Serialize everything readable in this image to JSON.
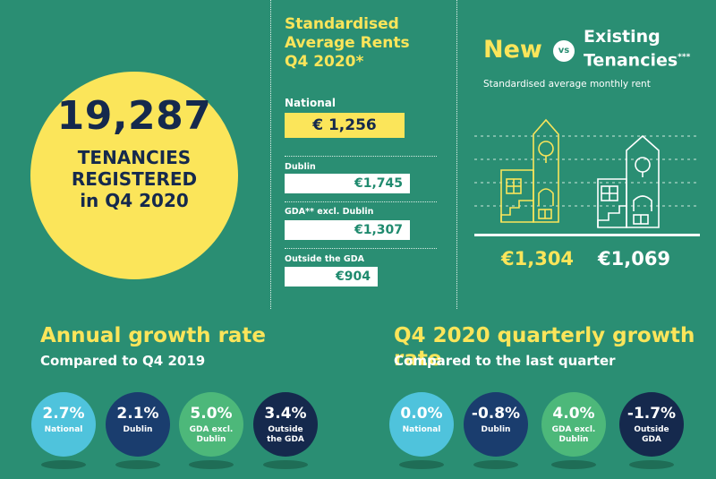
{
  "tenancies": {
    "number": "19,287",
    "line1": "TENANCIES",
    "line2": "REGISTERED",
    "line3": "in Q4 2020"
  },
  "rents": {
    "title_line1": "Standardised",
    "title_line2": "Average Rents",
    "title_line3": "Q4 2020*",
    "items": [
      {
        "label": "National",
        "value": "€ 1,256"
      },
      {
        "label": "Dublin",
        "value": "€1,745"
      },
      {
        "label": "GDA** excl. Dublin",
        "value": "€1,307"
      },
      {
        "label": "Outside the GDA",
        "value": "€904"
      }
    ]
  },
  "new_vs_existing": {
    "new_label": "New",
    "vs_label": "vs",
    "existing_line1": "Existing",
    "existing_line2": "Tenancies",
    "existing_mark": "***",
    "subtitle": "Standardised average monthly rent",
    "new_value": "€1,304",
    "existing_value": "€1,069"
  },
  "annual": {
    "title": "Annual growth rate",
    "subtitle": "Compared to Q4 2019",
    "circles": [
      {
        "value": "2.7%",
        "label1": "National",
        "label2": "",
        "color": "#4fc3dc"
      },
      {
        "value": "2.1%",
        "label1": "Dublin",
        "label2": "",
        "color": "#1a3d6e"
      },
      {
        "value": "5.0%",
        "label1": "GDA excl.",
        "label2": "Dublin",
        "color": "#4db87a"
      },
      {
        "value": "3.4%",
        "label1": "Outside",
        "label2": "the GDA",
        "color": "#15294d"
      }
    ]
  },
  "quarterly": {
    "title": "Q4 2020 quarterly growth rate",
    "subtitle": "Compared to the last quarter",
    "circles": [
      {
        "value": "0.0%",
        "label1": "National",
        "label2": "",
        "color": "#4fc3dc"
      },
      {
        "value": "-0.8%",
        "label1": "Dublin",
        "label2": "",
        "color": "#1a3d6e"
      },
      {
        "value": "4.0%",
        "label1": "GDA excl.",
        "label2": "Dublin",
        "color": "#4db87a"
      },
      {
        "value": "-1.7%",
        "label1": "Outside",
        "label2": "GDA",
        "color": "#15294d"
      }
    ]
  },
  "colors": {
    "background": "#2a8e73",
    "accent_yellow": "#fbe55a",
    "navy": "#15294d"
  }
}
